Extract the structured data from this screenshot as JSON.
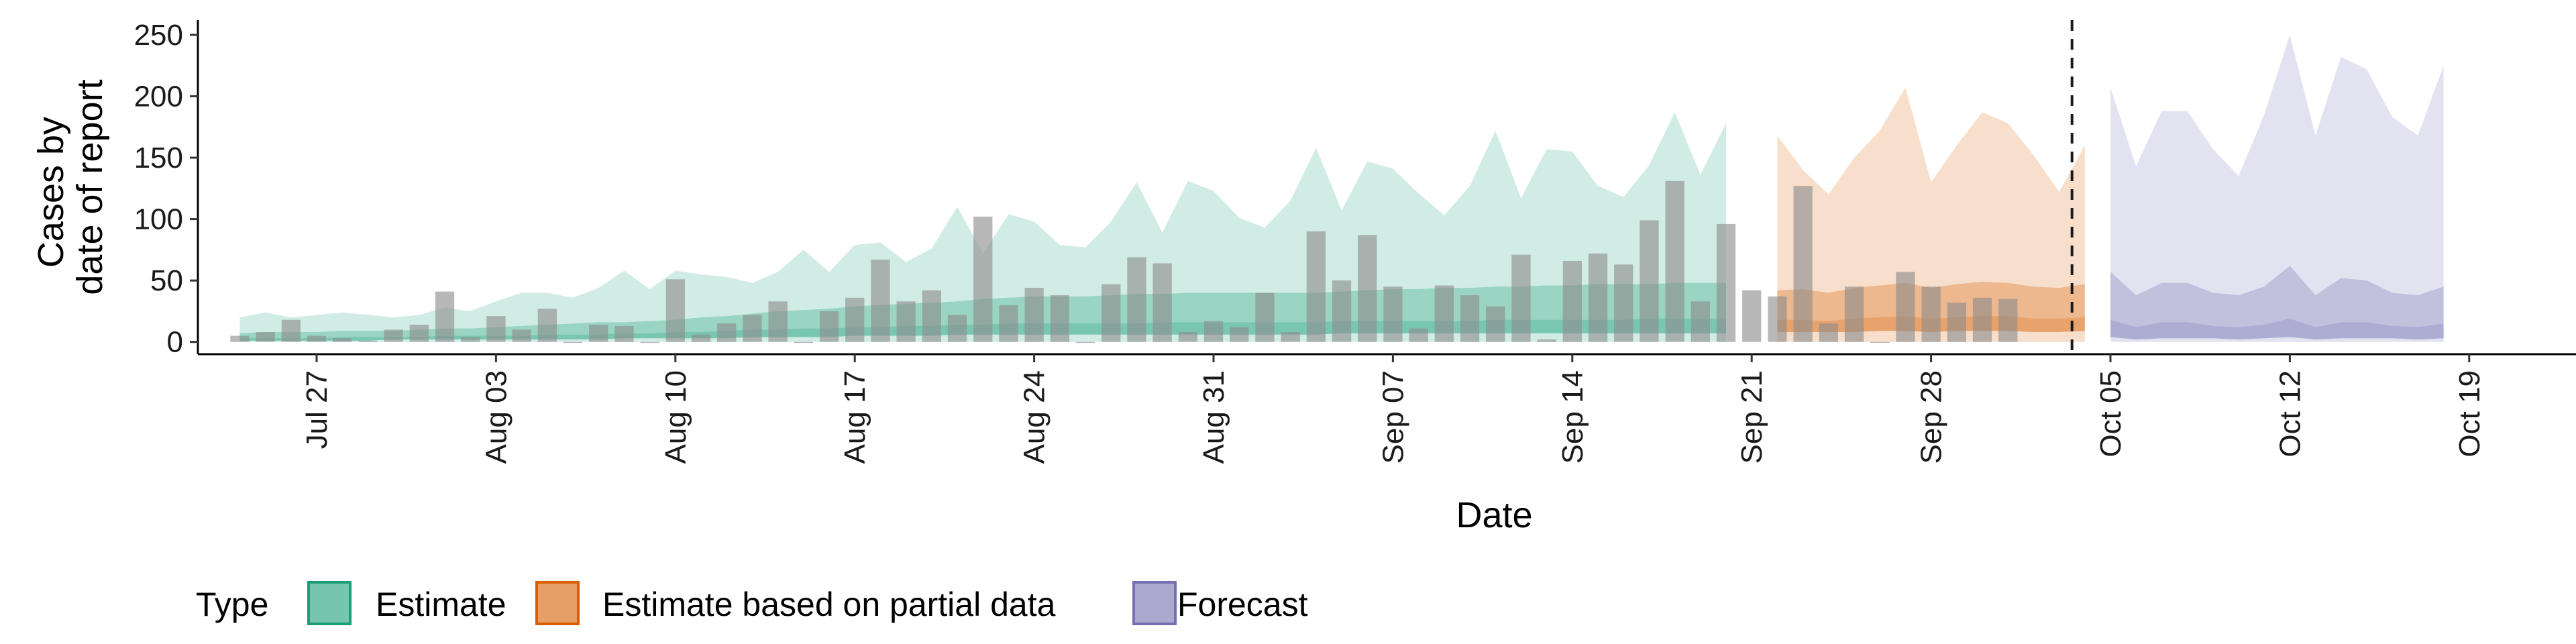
{
  "chart_data": {
    "type": "area",
    "xlabel": "Date",
    "ylabel": [
      "Cases by",
      "date of report"
    ],
    "x_start": "Jul 24",
    "ylim": [
      -10,
      262
    ],
    "yticks": [
      0,
      50,
      100,
      150,
      200,
      250
    ],
    "xticks": [
      {
        "day": 3,
        "label": "Jul 27"
      },
      {
        "day": 10,
        "label": "Aug 03"
      },
      {
        "day": 17,
        "label": "Aug 10"
      },
      {
        "day": 24,
        "label": "Aug 17"
      },
      {
        "day": 31,
        "label": "Aug 24"
      },
      {
        "day": 38,
        "label": "Aug 31"
      },
      {
        "day": 45,
        "label": "Sep 07"
      },
      {
        "day": 52,
        "label": "Sep 14"
      },
      {
        "day": 59,
        "label": "Sep 21"
      },
      {
        "day": 66,
        "label": "Sep 28"
      },
      {
        "day": 73,
        "label": "Oct 05"
      },
      {
        "day": 80,
        "label": "Oct 12"
      },
      {
        "day": 87,
        "label": "Oct 19"
      }
    ],
    "vline_day": 71.5,
    "bars": {
      "color": "#8c8c8c",
      "start_day": 0,
      "values": [
        5,
        8,
        18,
        5,
        3,
        1,
        10,
        14,
        41,
        4,
        21,
        10,
        27,
        0,
        14,
        13,
        0,
        51,
        6,
        15,
        22,
        33,
        0,
        25,
        36,
        67,
        33,
        42,
        22,
        102,
        30,
        44,
        38,
        0,
        47,
        69,
        64,
        8,
        17,
        12,
        40,
        8,
        90,
        50,
        87,
        45,
        11,
        46,
        38,
        29,
        71,
        2,
        66,
        72,
        63,
        99,
        131,
        33,
        96,
        42,
        37,
        127,
        15,
        45,
        0,
        57,
        45,
        32,
        36,
        35
      ]
    },
    "series": [
      {
        "name": "Estimate",
        "color": "#1b9e77",
        "start_day": 0,
        "upper_outer": [
          20,
          24,
          20,
          22,
          24,
          22,
          20,
          22,
          28,
          25,
          33,
          40,
          40,
          36,
          44,
          58,
          43,
          58,
          55,
          53,
          48,
          57,
          75,
          57,
          79,
          81,
          65,
          76,
          110,
          72,
          104,
          98,
          79,
          77,
          98,
          130,
          89,
          131,
          123,
          101,
          93,
          115,
          158,
          107,
          147,
          141,
          121,
          103,
          127,
          172,
          117,
          157,
          155,
          127,
          118,
          144,
          187,
          136,
          178
        ],
        "upper_inner": [
          7,
          8,
          8,
          8,
          9,
          9,
          9,
          10,
          11,
          11,
          12,
          13,
          14,
          15,
          16,
          16,
          17,
          18,
          20,
          21,
          23,
          25,
          26,
          27,
          29,
          30,
          31,
          32,
          33,
          35,
          36,
          37,
          37,
          37,
          38,
          39,
          39,
          40,
          40,
          40,
          40,
          40,
          40,
          41,
          42,
          43,
          43,
          44,
          44,
          45,
          45,
          46,
          46,
          47,
          47,
          47,
          48,
          48,
          48
        ],
        "median": [
          3,
          3,
          3,
          3,
          4,
          4,
          4,
          4,
          5,
          5,
          5,
          5,
          6,
          6,
          6,
          7,
          7,
          8,
          8,
          9,
          10,
          10,
          11,
          11,
          12,
          12,
          13,
          13,
          14,
          14,
          15,
          15,
          15,
          15,
          15,
          15,
          16,
          16,
          16,
          16,
          16,
          16,
          16,
          17,
          17,
          17,
          17,
          17,
          17,
          18,
          18,
          18,
          18,
          18,
          18,
          19,
          19,
          19,
          19
        ],
        "lower_inner": [
          1,
          1,
          1,
          1,
          1,
          1,
          2,
          2,
          2,
          2,
          2,
          2,
          2,
          2,
          2,
          3,
          3,
          3,
          3,
          3,
          4,
          4,
          4,
          4,
          5,
          5,
          5,
          5,
          6,
          6,
          6,
          6,
          6,
          6,
          6,
          6,
          6,
          6,
          6,
          6,
          6,
          6,
          6,
          7,
          7,
          7,
          7,
          7,
          7,
          7,
          7,
          7,
          7,
          7,
          7,
          7,
          7,
          7,
          7
        ],
        "lower_outer": [
          0,
          0,
          0,
          0,
          0,
          0,
          0,
          0,
          0,
          0,
          0,
          0,
          0,
          0,
          0,
          0,
          0,
          0,
          0,
          0,
          0,
          0,
          0,
          0,
          0,
          0,
          0,
          0,
          0,
          0,
          0,
          0,
          0,
          0,
          0,
          0,
          0,
          0,
          0,
          0,
          0,
          0,
          0,
          0,
          0,
          0,
          0,
          0,
          0,
          0,
          0,
          0,
          0,
          0,
          0,
          0,
          0,
          0,
          0
        ]
      },
      {
        "name": "Estimate based on partial data",
        "color": "#d95f02",
        "start_day": 60,
        "upper_outer": [
          168,
          140,
          120,
          150,
          172,
          207,
          130,
          160,
          187,
          178,
          152,
          122,
          160
        ],
        "upper_inner": [
          42,
          43,
          40,
          44,
          46,
          48,
          44,
          47,
          49,
          48,
          45,
          44,
          47
        ],
        "median": [
          18,
          18,
          17,
          19,
          20,
          21,
          19,
          20,
          21,
          21,
          19,
          19,
          20
        ],
        "lower_inner": [
          8,
          8,
          8,
          8,
          9,
          9,
          8,
          9,
          9,
          9,
          8,
          8,
          9
        ],
        "lower_outer": [
          0,
          0,
          0,
          0,
          0,
          0,
          0,
          0,
          0,
          0,
          0,
          0,
          0
        ]
      },
      {
        "name": "Forecast",
        "color": "#7570b3",
        "start_day": 73,
        "upper_outer": [
          207,
          143,
          188,
          188,
          157,
          135,
          185,
          250,
          168,
          232,
          222,
          183,
          168,
          225
        ],
        "upper_inner": [
          57,
          38,
          48,
          48,
          40,
          38,
          45,
          62,
          38,
          52,
          50,
          40,
          38,
          45
        ],
        "median": [
          18,
          12,
          16,
          16,
          13,
          12,
          14,
          19,
          12,
          16,
          16,
          13,
          12,
          15
        ],
        "lower_inner": [
          4,
          2,
          3,
          3,
          3,
          2,
          3,
          4,
          2,
          3,
          3,
          3,
          2,
          3
        ],
        "lower_outer": [
          0,
          0,
          0,
          0,
          0,
          0,
          0,
          0,
          0,
          0,
          0,
          0,
          0,
          0
        ]
      }
    ],
    "legend": {
      "title": "Type",
      "position": "bottom",
      "items": [
        {
          "label": "Estimate",
          "color": "#1b9e77"
        },
        {
          "label": "Estimate based on partial data",
          "color": "#d95f02"
        },
        {
          "label": "Forecast",
          "color": "#7570b3"
        }
      ]
    },
    "grid": false
  }
}
